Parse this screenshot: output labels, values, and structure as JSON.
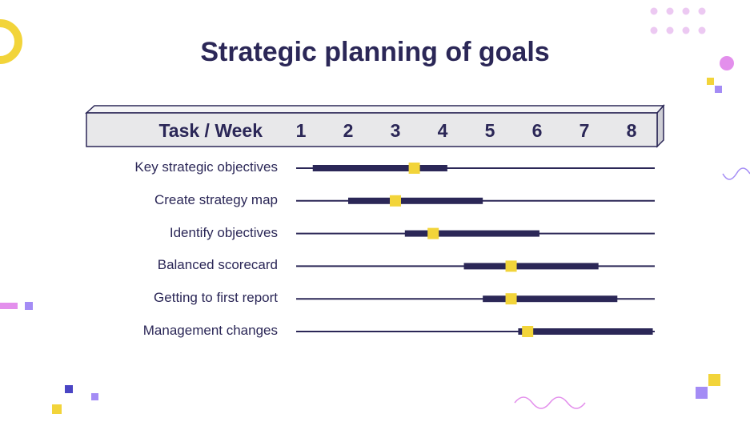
{
  "title": "Strategic planning of goals",
  "colors": {
    "ink": "#2b2757",
    "accent": "#f2d43a",
    "header_fill": "#e8e8ea",
    "pink": "#e3b5ee",
    "violet": "#a48cf5"
  },
  "chart_data": {
    "type": "gantt",
    "header_label": "Task / Week",
    "weeks": [
      "1",
      "2",
      "3",
      "4",
      "5",
      "6",
      "7",
      "8"
    ],
    "tasks": [
      {
        "name": "Key strategic objectives",
        "start": 1.25,
        "end": 4.1,
        "milestone": 3.4
      },
      {
        "name": "Create strategy map",
        "start": 2.0,
        "end": 4.85,
        "milestone": 3.0
      },
      {
        "name": "Identify objectives",
        "start": 3.2,
        "end": 6.05,
        "milestone": 3.8
      },
      {
        "name": "Balanced scorecard",
        "start": 4.45,
        "end": 7.3,
        "milestone": 5.45
      },
      {
        "name": "Getting to first report",
        "start": 4.85,
        "end": 7.7,
        "milestone": 5.45
      },
      {
        "name": "Management changes",
        "start": 5.6,
        "end": 8.45,
        "milestone": 5.8
      }
    ]
  }
}
